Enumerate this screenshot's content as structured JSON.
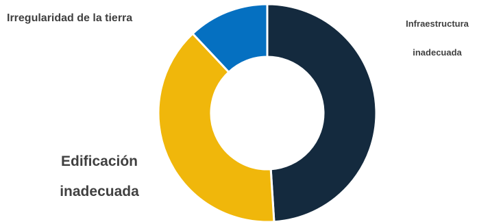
{
  "chart_data": {
    "type": "pie",
    "variant": "donut",
    "title": "",
    "categories": [
      "Infraestructura inadecuada",
      "Edificación inadecuada",
      "Irregularidad de la tierra"
    ],
    "values": [
      49,
      39,
      12
    ],
    "colors": [
      "#142a3e",
      "#f0b70b",
      "#0570c1"
    ],
    "labels": {
      "infraestructura": [
        "Infraestructura",
        "inadecuada"
      ],
      "edificacion": [
        "Edificación",
        "inadecuada"
      ],
      "irregularidad": "Irregularidad de la tierra"
    },
    "legend": "none"
  }
}
